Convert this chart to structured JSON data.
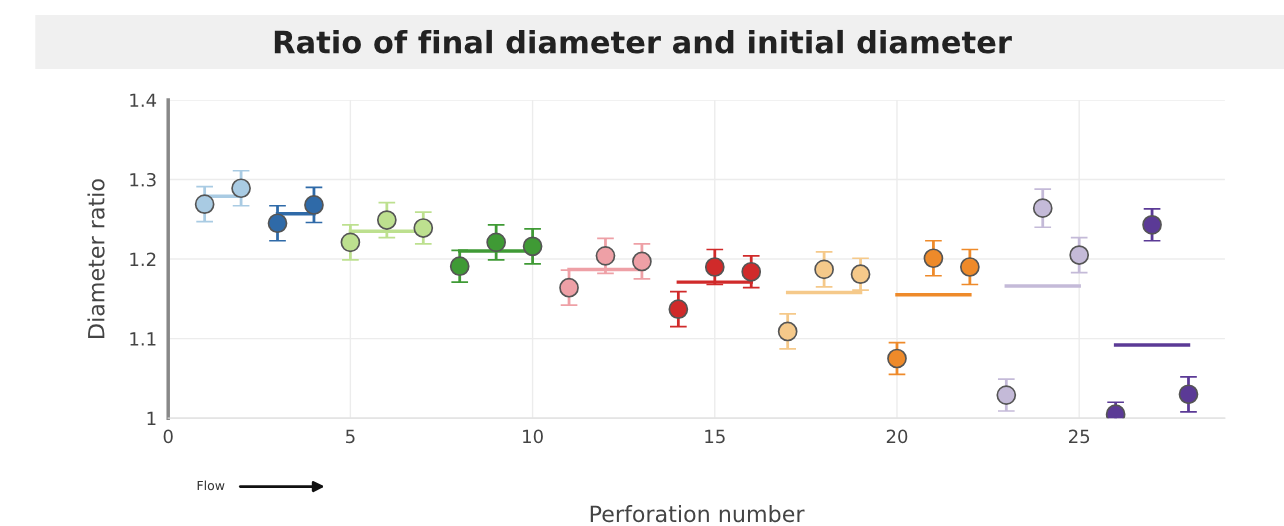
{
  "chart_data": {
    "type": "scatter",
    "title": "Ratio of final diameter and initial diameter",
    "xlabel": "Perforation number",
    "ylabel": "Diameter ratio",
    "xlim": [
      0,
      29
    ],
    "xticks": [
      0,
      5,
      10,
      15,
      20,
      25
    ],
    "ylim": [
      1,
      1.4
    ],
    "yticks": [
      1,
      1.1,
      1.2,
      1.3,
      1.4
    ],
    "grid": true,
    "marker": "circle",
    "annotations": [
      "Flow"
    ],
    "series": [
      {
        "color": "#a9cbe3",
        "x": [
          1,
          2
        ],
        "values": [
          1.269,
          1.289
        ],
        "errors": [
          0.022,
          0.022
        ]
      },
      {
        "type": "line",
        "marker": "none",
        "color": "#a9cbe3",
        "x": [
          1,
          2
        ],
        "values": [
          1.279,
          1.279
        ]
      },
      {
        "color": "#2f6aa8",
        "x": [
          3,
          4
        ],
        "values": [
          1.245,
          1.268
        ],
        "errors": [
          0.022,
          0.022
        ]
      },
      {
        "type": "line",
        "marker": "none",
        "color": "#2f6aa8",
        "x": [
          3,
          4
        ],
        "values": [
          1.257,
          1.257
        ]
      },
      {
        "color": "#bde08f",
        "x": [
          5,
          6,
          7
        ],
        "values": [
          1.221,
          1.249,
          1.239
        ],
        "errors": [
          0.022,
          0.022,
          0.02
        ]
      },
      {
        "type": "line",
        "marker": "none",
        "color": "#bde08f",
        "x": [
          5,
          7
        ],
        "values": [
          1.235,
          1.235
        ]
      },
      {
        "color": "#3f9a35",
        "x": [
          8,
          9,
          10
        ],
        "values": [
          1.191,
          1.221,
          1.216
        ],
        "errors": [
          0.02,
          0.022,
          0.022
        ]
      },
      {
        "type": "line",
        "marker": "none",
        "color": "#3f9a35",
        "x": [
          8,
          10
        ],
        "values": [
          1.21,
          1.21
        ]
      },
      {
        "color": "#eea0a6",
        "x": [
          11,
          12,
          13
        ],
        "values": [
          1.164,
          1.204,
          1.197
        ],
        "errors": [
          0.022,
          0.022,
          0.022
        ]
      },
      {
        "type": "line",
        "marker": "none",
        "color": "#eea0a6",
        "x": [
          11,
          13
        ],
        "values": [
          1.187,
          1.187
        ]
      },
      {
        "color": "#d02a2a",
        "x": [
          14,
          15,
          16
        ],
        "values": [
          1.137,
          1.19,
          1.184
        ],
        "errors": [
          0.022,
          0.022,
          0.02
        ]
      },
      {
        "type": "line",
        "marker": "none",
        "color": "#d02a2a",
        "x": [
          14,
          16
        ],
        "values": [
          1.171,
          1.171
        ]
      },
      {
        "color": "#f5c98a",
        "x": [
          17,
          18,
          19
        ],
        "values": [
          1.109,
          1.187,
          1.181
        ],
        "errors": [
          0.022,
          0.022,
          0.02
        ]
      },
      {
        "type": "line",
        "marker": "none",
        "color": "#f5c98a",
        "x": [
          17,
          19
        ],
        "values": [
          1.158,
          1.158
        ]
      },
      {
        "color": "#ee8a2a",
        "x": [
          20,
          21,
          22
        ],
        "values": [
          1.075,
          1.201,
          1.19
        ],
        "errors": [
          0.02,
          0.022,
          0.022
        ]
      },
      {
        "type": "line",
        "marker": "none",
        "color": "#ee8a2a",
        "x": [
          20,
          22
        ],
        "values": [
          1.155,
          1.155
        ]
      },
      {
        "color": "#c4bad8",
        "x": [
          23,
          24,
          25
        ],
        "values": [
          1.029,
          1.264,
          1.205
        ],
        "errors": [
          0.02,
          0.024,
          0.022
        ]
      },
      {
        "type": "line",
        "marker": "none",
        "color": "#c4bad8",
        "x": [
          23,
          25
        ],
        "values": [
          1.166,
          1.166
        ]
      },
      {
        "color": "#5b3a96",
        "x": [
          26,
          27,
          28
        ],
        "values": [
          1.005,
          1.243,
          1.03
        ],
        "errors": [
          0.015,
          0.02,
          0.022
        ]
      },
      {
        "type": "line",
        "marker": "none",
        "color": "#5b3a96",
        "x": [
          26,
          28
        ],
        "values": [
          1.092,
          1.092
        ]
      }
    ]
  }
}
